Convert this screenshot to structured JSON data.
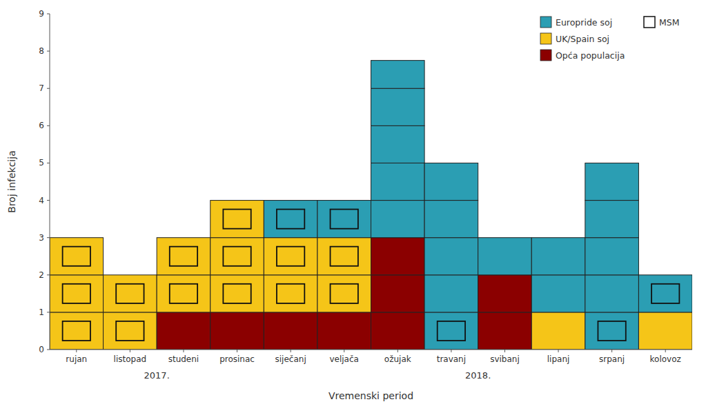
{
  "chart_data": {
    "type": "bar",
    "stacked": true,
    "x_label": "Vremenski period",
    "y_label": "Broj infekcija",
    "categories": [
      "rujan",
      "listopad",
      "studeni",
      "prosinac",
      "siječanj",
      "veljača",
      "ožujak",
      "travanj",
      "svibanj",
      "lipanj",
      "srpanj",
      "kolovoz"
    ],
    "series": [
      {
        "name": "Opća populacija",
        "color": "#8B0000",
        "values": [
          0,
          0,
          1,
          1,
          1,
          1,
          3,
          0,
          2,
          0,
          0,
          0
        ],
        "msm": [
          0,
          0,
          0,
          0,
          0,
          0,
          0,
          0,
          0,
          0,
          0,
          0
        ]
      },
      {
        "name": "UK/Spain soj",
        "color": "#F5C518",
        "values": [
          3,
          2,
          2,
          3,
          2,
          2,
          0,
          0,
          0,
          1,
          0,
          1
        ],
        "msm": [
          3,
          2,
          2,
          3,
          2,
          2,
          0,
          0,
          0,
          0,
          0,
          0
        ]
      },
      {
        "name": "Europride soj",
        "color": "#2B9EB3",
        "values": [
          0,
          0,
          0,
          0,
          1,
          1,
          4.75,
          5,
          1,
          2,
          5,
          1
        ],
        "msm": [
          0,
          0,
          0,
          0,
          1,
          1,
          0,
          1,
          0,
          0,
          1,
          1
        ]
      }
    ],
    "msm_legend": "MSM",
    "annotations": [
      {
        "label": "2017.",
        "x": 1.5
      },
      {
        "label": "2018.",
        "x": 7.5
      }
    ],
    "ylim": [
      0,
      9
    ],
    "yticks": [
      0,
      1,
      2,
      3,
      4,
      5,
      6,
      7,
      8,
      9
    ],
    "grid": false,
    "legend": "upper right"
  }
}
